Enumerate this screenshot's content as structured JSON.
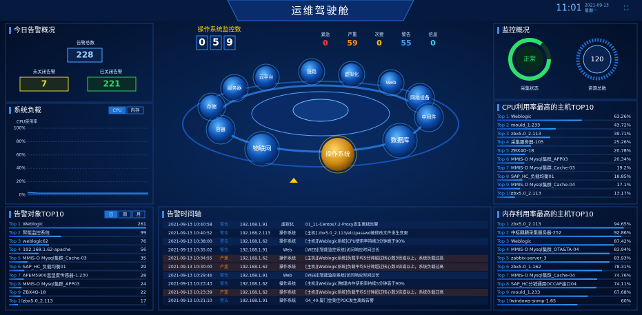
{
  "header": {
    "title": "运维驾驶舱",
    "time": "11:01",
    "date": "2021-09-13",
    "weekday": "星期一"
  },
  "alarm_overview": {
    "title": "今日告警概况",
    "total_label": "告警总数",
    "total": 228,
    "open_label": "未关闭告警",
    "open": 7,
    "closed_label": "已关闭告警",
    "closed": 221
  },
  "system_load": {
    "title": "系统负载",
    "tabs": [
      "CPU",
      "内存"
    ],
    "chart": {
      "type": "line",
      "y_label": "CPU使用率",
      "ylim": [
        0,
        100
      ],
      "yticks": [
        {
          "value": 0,
          "label": "0%"
        },
        {
          "value": 20,
          "label": "20%"
        },
        {
          "value": 40,
          "label": "40%"
        },
        {
          "value": 60,
          "label": "60%"
        },
        {
          "value": 80,
          "label": "80%"
        },
        {
          "value": 100,
          "label": "100%"
        }
      ],
      "values": [
        4,
        3,
        3,
        3,
        3,
        3,
        3,
        3,
        3,
        3,
        3,
        3
      ],
      "color": "#2f8cff",
      "grid": true
    }
  },
  "os_monitor": {
    "title": "操作系统监控数",
    "digits": [
      "0",
      "5",
      "9"
    ],
    "levels": [
      {
        "name": "紧急",
        "value": 0,
        "color": "#ff3b3b"
      },
      {
        "name": "严重",
        "value": 59,
        "color": "#ff8c1a"
      },
      {
        "name": "次要",
        "value": 0,
        "color": "#ffc21a"
      },
      {
        "name": "警告",
        "value": 55,
        "color": "#3aa0ff"
      },
      {
        "name": "信息",
        "value": 0,
        "color": "#3ad0ff"
      }
    ]
  },
  "nodes": [
    "云平台",
    "链路",
    "虚拟化",
    "Web",
    "网络设备",
    "中间件",
    "数据库",
    "操作系统",
    "物联网",
    "容器",
    "存储",
    "服务器"
  ],
  "monitor_overview": {
    "title": "监控概况",
    "status": "正常",
    "status_label": "采集状态",
    "resources": 120,
    "resources_label": "资源总数"
  },
  "cpu_top": {
    "title": "CPU利用率最高的主机TOP10",
    "rows": [
      {
        "rank": "Top 1",
        "name": "Weblogic",
        "value": 63.26,
        "label": "63.26%"
      },
      {
        "rank": "Top 2",
        "name": "mould_1.233",
        "value": 43.72,
        "label": "43.72%"
      },
      {
        "rank": "Top 3",
        "name": "zbx5.0_2.113",
        "value": 39.71,
        "label": "39.71%"
      },
      {
        "rank": "Top 4",
        "name": "采集服务器-105",
        "value": 25.26,
        "label": "25.26%"
      },
      {
        "rank": "Top 5",
        "name": "ZBX4O-18",
        "value": 20.78,
        "label": "20.78%"
      },
      {
        "rank": "Top 6",
        "name": "MMIS-O Mysql集群_APP03",
        "value": 20.34,
        "label": "20.34%"
      },
      {
        "rank": "Top 7",
        "name": "MMIS-O Mysql集群_Cache-03",
        "value": 19.2,
        "label": "19.2%"
      },
      {
        "rank": "Top 8",
        "name": "SAP_HC_负载均衡01",
        "value": 18.85,
        "label": "18.85%"
      },
      {
        "rank": "Top 9",
        "name": "MMIS-O Mysql集群_Cache-04",
        "value": 17.1,
        "label": "17.1%"
      },
      {
        "rank": "Top 10",
        "name": "zbx5.0_2.113",
        "value": 13.17,
        "label": "13.17%"
      }
    ]
  },
  "mem_top": {
    "title": "内存利用率最高的主机TOP10",
    "rows": [
      {
        "rank": "Top 1",
        "name": "zbx5.0_2.113",
        "value": 94.65,
        "label": "94.65%"
      },
      {
        "rank": "Top 2",
        "name": "中标麒麟采集服务器-252",
        "value": 92.86,
        "label": "92.86%"
      },
      {
        "rank": "Top 3",
        "name": "Weblogic",
        "value": 87.42,
        "label": "87.42%"
      },
      {
        "rank": "Top 4",
        "name": "MMIS-O Mysql集群_OTA&TA-04",
        "value": 83.94,
        "label": "83.94%"
      },
      {
        "rank": "Top 5",
        "name": "zabbix-server_3",
        "value": 83.93,
        "label": "83.93%"
      },
      {
        "rank": "Top 6",
        "name": "zbx5.0_1.162",
        "value": 78.31,
        "label": "78.31%"
      },
      {
        "rank": "Top 7",
        "name": "MMIS-O Mysql集群_Cache-04",
        "value": 74.76,
        "label": "74.76%"
      },
      {
        "rank": "Top 8",
        "name": "SAP_HC分销通用OCCAP接口04",
        "value": 74.11,
        "label": "74.11%"
      },
      {
        "rank": "Top 9",
        "name": "mould_1.233",
        "value": 67.68,
        "label": "67.68%"
      },
      {
        "rank": "Top 10",
        "name": "windows-snmp-1.65",
        "value": 60,
        "label": "60%"
      }
    ]
  },
  "alarm_top": {
    "title": "告警对象TOP10",
    "tabs": [
      "日",
      "周",
      "月"
    ],
    "rows": [
      {
        "rank": "Top 1",
        "name": "Weblogic",
        "value": 261
      },
      {
        "rank": "Top 2",
        "name": "智能监控系统",
        "value": 99
      },
      {
        "rank": "Top 3",
        "name": "weblogic62",
        "value": 76
      },
      {
        "rank": "Top 4",
        "name": "192.168.1.62-apache",
        "value": 56
      },
      {
        "rank": "Top 5",
        "name": "MMIS-O Mysql集群_Cache-03",
        "value": 35
      },
      {
        "rank": "Top 6",
        "name": "SAP_HC_负载均衡01",
        "value": 29
      },
      {
        "rank": "Top 7",
        "name": "APEM5900温湿度传感器-1.230",
        "value": 28
      },
      {
        "rank": "Top 8",
        "name": "MMIS-O Mysql集群_APP03",
        "value": 24
      },
      {
        "rank": "Top 9",
        "name": "ZBX4O-18",
        "value": 22
      },
      {
        "rank": "Top 10",
        "name": "zbx5.0_2.113",
        "value": 17
      }
    ]
  },
  "timeline": {
    "title": "告警时间轴",
    "severity_colors": {
      "警告": "#1f6fd0",
      "严重": "#d9731c"
    },
    "rows": [
      [
        "2021-09-13 10:40:58",
        "警告",
        "192.168.1.91",
        "虚拟化",
        "01_11-Centos7.2-Proxy发生离线告警"
      ],
      [
        "2021-09-13 10:40:52",
        "警告",
        "192.168.2.113",
        "操作系统",
        "[主机] zbx5.0_2.113/etc/passwd被修改文件发生变更"
      ],
      [
        "2021-09-13 10:38:00",
        "警告",
        "192.168.1.62",
        "操作系统",
        "[主机][Weblogic系统]CPU使用率持续3分钟高于90%"
      ],
      [
        "2021-09-13 10:35:02",
        "警告",
        "192.168.1.91",
        "Web",
        "[WEB][智能监控系统]访问响应时间过长"
      ],
      [
        "2021-09-13 10:34:55",
        "严重",
        "192.168.1.62",
        "操作系统",
        "[主机][Weblogic系统]负载平均5分钟超过核心数3倍或以上，系统负载过高"
      ],
      [
        "2021-09-13 10:30:00",
        "严重",
        "192.168.1.62",
        "操作系统",
        "[主机][Weblogic系统]负载平均5分钟超过核心数3倍或以上，系统负载过高"
      ],
      [
        "2021-09-13 10:29:46",
        "警告",
        "192.168.1.91",
        "Web",
        "[WEB][智能监控系统]访问响应时间过长"
      ],
      [
        "2021-09-13 10:23:43",
        "警告",
        "192.168.1.62",
        "操作系统",
        "[主机][Weblogic]物理内存使用率持续5分钟高于90%"
      ],
      [
        "2021-09-13 10:23:39",
        "严重",
        "192.168.1.62",
        "操作系统",
        "[主机][Weblogic系统]负载平均5分钟超过核心数3倍或以上，系统负载过高"
      ],
      [
        "2021-09-13 10:21:10",
        "警告",
        "192.168.1.91",
        "操作系统",
        "04_40-厦门金美佳POC发生离线告警"
      ]
    ]
  }
}
